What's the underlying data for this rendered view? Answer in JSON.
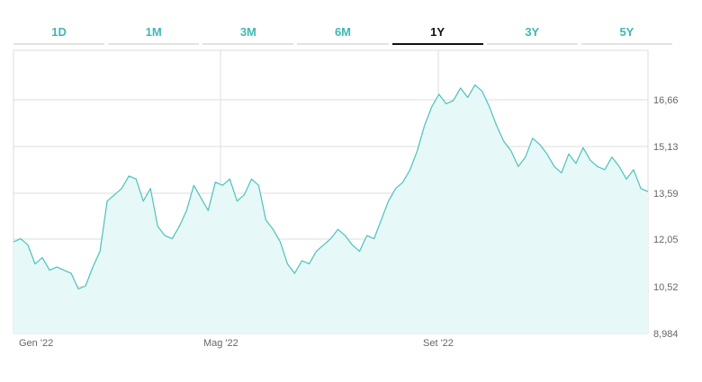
{
  "tabs": [
    {
      "label": "1D",
      "active": false
    },
    {
      "label": "1M",
      "active": false
    },
    {
      "label": "3M",
      "active": false
    },
    {
      "label": "6M",
      "active": false
    },
    {
      "label": "1Y",
      "active": true
    },
    {
      "label": "3Y",
      "active": false
    },
    {
      "label": "5Y",
      "active": false
    }
  ],
  "colors": {
    "accent": "#3fb8b4",
    "line": "#4cc2bd",
    "area": "#e6f8f7",
    "grid": "#dedede",
    "active_tab": "#111111"
  },
  "chart_data": {
    "type": "area",
    "title": "",
    "xlabel": "",
    "ylabel": "",
    "ylim": [
      8.984,
      18.0
    ],
    "y_ticks": [
      "16,66",
      "15,13",
      "13,59",
      "12,05",
      "10,52",
      "8,984"
    ],
    "x_ticks": [
      "Gen '22",
      "Mag '22",
      "Set '22"
    ],
    "grid": true,
    "series": [
      {
        "values": [
          11.9,
          12.0,
          11.8,
          11.2,
          11.4,
          11.0,
          11.1,
          11.0,
          10.9,
          10.4,
          10.5,
          11.1,
          11.6,
          13.2,
          13.4,
          13.6,
          14.0,
          13.9,
          13.2,
          13.6,
          12.4,
          12.1,
          12.0,
          12.4,
          12.9,
          13.7,
          13.3,
          12.9,
          13.8,
          13.7,
          13.9,
          13.2,
          13.4,
          13.9,
          13.7,
          12.6,
          12.3,
          11.9,
          11.2,
          10.9,
          11.3,
          11.2,
          11.6,
          11.8,
          12.0,
          12.3,
          12.1,
          11.8,
          11.6,
          12.1,
          12.0,
          12.6,
          13.2,
          13.6,
          13.8,
          14.2,
          14.8,
          15.6,
          16.2,
          16.6,
          16.3,
          16.4,
          16.8,
          16.5,
          16.9,
          16.7,
          16.2,
          15.6,
          15.1,
          14.8,
          14.3,
          14.6,
          15.2,
          15.0,
          14.7,
          14.3,
          14.1,
          14.7,
          14.4,
          14.9,
          14.5,
          14.3,
          14.2,
          14.6,
          14.3,
          13.9,
          14.2,
          13.6,
          13.5
        ]
      }
    ]
  }
}
